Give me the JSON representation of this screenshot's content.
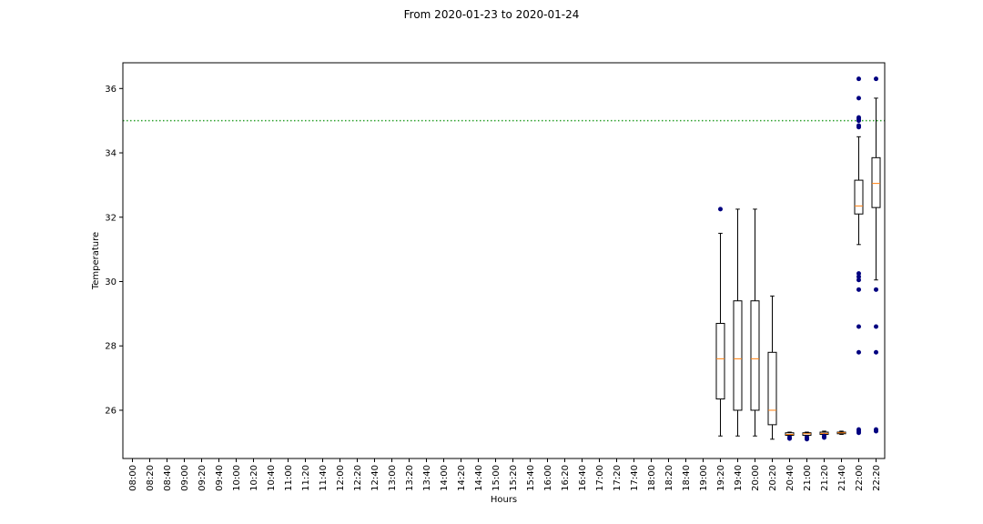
{
  "chart_data": {
    "type": "box",
    "title": "From 2020-01-23 to 2020-01-24",
    "xlabel": "Hours",
    "ylabel": "Temperature",
    "ylim": [
      24.5,
      36.8
    ],
    "yticks": [
      26,
      28,
      30,
      32,
      34,
      36
    ],
    "grid": false,
    "threshold": {
      "value": 35,
      "color": "#2ca02c",
      "style": "dotted"
    },
    "box_color": "#000000",
    "median_color": "#ff7f0e",
    "outlier_color": "#000080",
    "categories": [
      "08:00",
      "08:20",
      "08:40",
      "09:00",
      "09:20",
      "09:40",
      "10:00",
      "10:20",
      "10:40",
      "11:00",
      "11:20",
      "11:40",
      "12:00",
      "12:20",
      "12:40",
      "13:00",
      "13:20",
      "13:40",
      "14:00",
      "14:20",
      "14:40",
      "15:00",
      "15:20",
      "15:40",
      "16:00",
      "16:20",
      "16:40",
      "17:00",
      "17:20",
      "17:40",
      "18:00",
      "18:20",
      "18:40",
      "19:00",
      "19:20",
      "19:40",
      "20:00",
      "20:20",
      "20:40",
      "21:00",
      "21:20",
      "21:40",
      "22:00",
      "22:20"
    ],
    "boxes": [
      {
        "x": "19:20",
        "whislo": 25.2,
        "q1": 26.35,
        "med": 27.6,
        "q3": 28.7,
        "whishi": 31.5,
        "fliers": [
          32.25
        ]
      },
      {
        "x": "19:40",
        "whislo": 25.2,
        "q1": 26.0,
        "med": 27.6,
        "q3": 29.4,
        "whishi": 32.25,
        "fliers": []
      },
      {
        "x": "20:00",
        "whislo": 25.2,
        "q1": 26.0,
        "med": 27.6,
        "q3": 29.4,
        "whishi": 32.25,
        "fliers": []
      },
      {
        "x": "20:20",
        "whislo": 25.1,
        "q1": 25.55,
        "med": 26.0,
        "q3": 27.8,
        "whishi": 29.55,
        "fliers": []
      },
      {
        "x": "20:40",
        "whislo": 25.2,
        "q1": 25.22,
        "med": 25.25,
        "q3": 25.3,
        "whishi": 25.32,
        "fliers": [
          25.12,
          25.15
        ]
      },
      {
        "x": "21:00",
        "whislo": 25.2,
        "q1": 25.22,
        "med": 25.27,
        "q3": 25.3,
        "whishi": 25.32,
        "fliers": [
          25.1,
          25.15
        ]
      },
      {
        "x": "21:20",
        "whislo": 25.2,
        "q1": 25.25,
        "med": 25.28,
        "q3": 25.32,
        "whishi": 25.35,
        "fliers": [
          25.15,
          25.2
        ]
      },
      {
        "x": "21:40",
        "whislo": 25.25,
        "q1": 25.27,
        "med": 25.3,
        "q3": 25.32,
        "whishi": 25.35,
        "fliers": []
      },
      {
        "x": "22:00",
        "whislo": 31.15,
        "q1": 32.1,
        "med": 32.35,
        "q3": 33.15,
        "whishi": 34.5,
        "fliers": [
          36.3,
          35.7,
          35.1,
          35.05,
          35.0,
          34.85,
          34.8,
          30.25,
          30.15,
          30.05,
          29.75,
          28.6,
          27.8,
          25.4,
          25.35,
          25.3
        ]
      },
      {
        "x": "22:20",
        "whislo": 30.05,
        "q1": 32.3,
        "med": 33.05,
        "q3": 33.85,
        "whishi": 35.7,
        "fliers": [
          36.3,
          29.75,
          28.6,
          27.8,
          25.4,
          25.35
        ]
      }
    ]
  }
}
